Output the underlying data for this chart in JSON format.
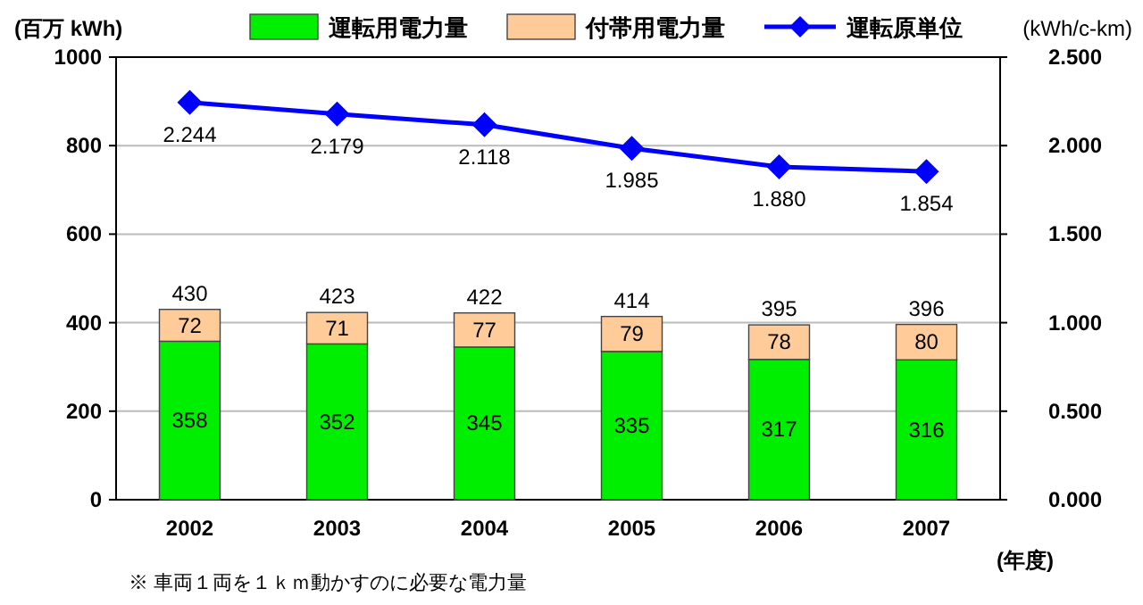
{
  "chart_data": {
    "type": "bar",
    "stacked": true,
    "categories": [
      "2002",
      "2003",
      "2004",
      "2005",
      "2006",
      "2007"
    ],
    "series": [
      {
        "name": "運転用電力量",
        "color": "#00ee00",
        "values": [
          358,
          352,
          345,
          335,
          317,
          316
        ],
        "value_labels": [
          "358",
          "352",
          "345",
          "335",
          "317",
          "316"
        ]
      },
      {
        "name": "付帯用電力量",
        "color": "#ffcc99",
        "values": [
          72,
          71,
          77,
          79,
          78,
          80
        ],
        "value_labels": [
          "72",
          "71",
          "77",
          "79",
          "78",
          "80"
        ]
      },
      {
        "name": "運転原単位",
        "type": "line",
        "axis": "y2",
        "color": "#0000ff",
        "marker": "diamond",
        "values": [
          2.244,
          2.179,
          2.118,
          1.985,
          1.88,
          1.854
        ],
        "value_labels": [
          "2.244",
          "2.179",
          "2.118",
          "1.985",
          "1.880",
          "1.854"
        ]
      }
    ],
    "totals": [
      "430",
      "423",
      "422",
      "414",
      "395",
      "396"
    ],
    "ylim": [
      0,
      1000
    ],
    "yticks": [
      0,
      200,
      400,
      600,
      800,
      1000
    ],
    "y2lim": [
      0,
      2.5
    ],
    "y2ticks": [
      {
        "value": 0,
        "label": "0.000"
      },
      {
        "value": 0.5,
        "label": "0.500"
      },
      {
        "value": 1,
        "label": "1.000"
      },
      {
        "value": 1.5,
        "label": "1.500"
      },
      {
        "value": 2,
        "label": "2.000"
      },
      {
        "value": 2.5,
        "label": "2.500"
      }
    ],
    "ylabel": "(百万 kWh)",
    "y2label": "(kWh/c-km)",
    "xlabel": "(年度)",
    "annotations": [
      "※ 車両１両を１ｋｍ動かすのに必要な電力量"
    ],
    "grid": "y",
    "legend": "top"
  }
}
